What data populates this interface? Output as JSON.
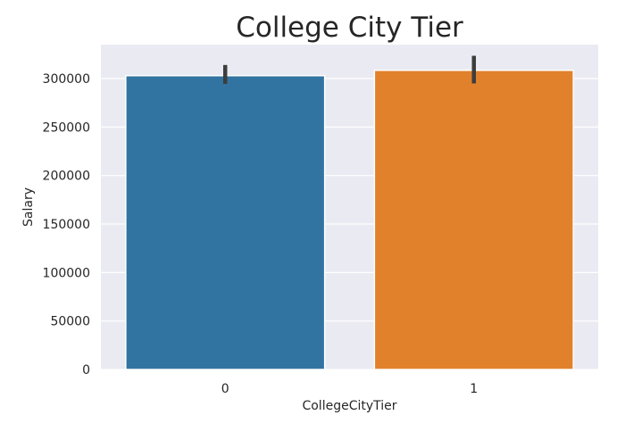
{
  "chart_data": {
    "type": "bar",
    "title": "College City Tier",
    "xlabel": "CollegeCityTier",
    "ylabel": "Salary",
    "categories": [
      "0",
      "1"
    ],
    "values": [
      303000,
      308500
    ],
    "error_bars": [
      {
        "low": 294500,
        "high": 314000
      },
      {
        "low": 295000,
        "high": 323500
      }
    ],
    "ylim": [
      0,
      335000
    ],
    "yticks": [
      0,
      50000,
      100000,
      150000,
      200000,
      250000,
      300000
    ],
    "ytick_labels": [
      "0",
      "50000",
      "100000",
      "150000",
      "200000",
      "250000",
      "300000"
    ],
    "colors": [
      "#3274a1",
      "#e1812c"
    ],
    "background": "#eaeaf2",
    "grid": true,
    "grid_color": "#ffffff",
    "errorbar_color": "#3d3d3d"
  }
}
